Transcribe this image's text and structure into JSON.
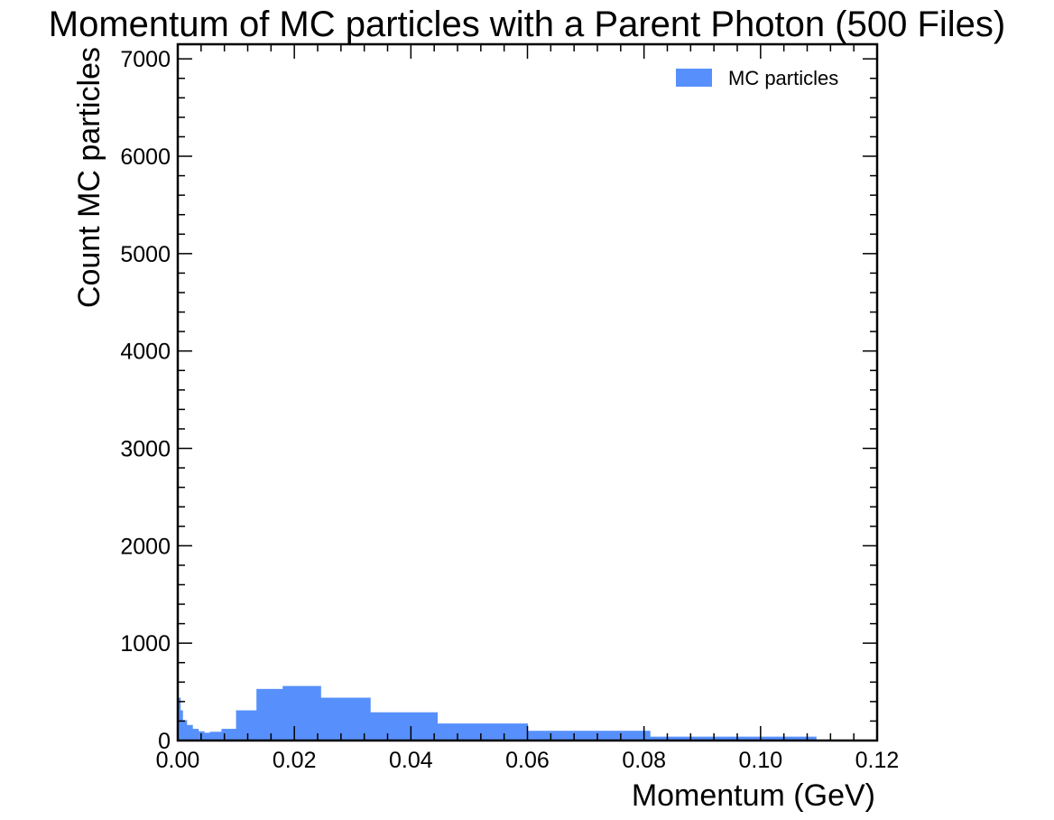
{
  "chart_data": {
    "type": "bar",
    "title": "Momentum of MC particles with a Parent Photon (500 Files)",
    "xlabel": "Momentum (GeV)",
    "ylabel": "Count MC particles",
    "xlim": [
      0,
      0.12
    ],
    "ylim": [
      0,
      7150
    ],
    "xticks": [
      0,
      0.02,
      0.04,
      0.06,
      0.08,
      0.1,
      0.12
    ],
    "xtick_labels": [
      "0.00",
      "0.02",
      "0.04",
      "0.06",
      "0.08",
      "0.10",
      "0.12"
    ],
    "yticks": [
      0,
      1000,
      2000,
      3000,
      4000,
      5000,
      6000,
      7000
    ],
    "ytick_labels": [
      "0",
      "1000",
      "2000",
      "3000",
      "4000",
      "5000",
      "6000",
      "7000"
    ],
    "legend": {
      "label": "MC particles",
      "position": "top-right"
    },
    "color": "#5790fc",
    "bins": [
      {
        "x0": 0.0,
        "x1": 0.0004,
        "value": 440
      },
      {
        "x0": 0.0004,
        "x1": 0.0008,
        "value": 310
      },
      {
        "x0": 0.0008,
        "x1": 0.0015,
        "value": 210
      },
      {
        "x0": 0.0015,
        "x1": 0.0025,
        "value": 160
      },
      {
        "x0": 0.0025,
        "x1": 0.0035,
        "value": 120
      },
      {
        "x0": 0.0035,
        "x1": 0.0045,
        "value": 95
      },
      {
        "x0": 0.0045,
        "x1": 0.0055,
        "value": 80
      },
      {
        "x0": 0.0055,
        "x1": 0.0075,
        "value": 90
      },
      {
        "x0": 0.0075,
        "x1": 0.01,
        "value": 120
      },
      {
        "x0": 0.01,
        "x1": 0.0135,
        "value": 310
      },
      {
        "x0": 0.0135,
        "x1": 0.018,
        "value": 530
      },
      {
        "x0": 0.018,
        "x1": 0.0245,
        "value": 560
      },
      {
        "x0": 0.0245,
        "x1": 0.033,
        "value": 440
      },
      {
        "x0": 0.033,
        "x1": 0.0445,
        "value": 290
      },
      {
        "x0": 0.0445,
        "x1": 0.06,
        "value": 175
      },
      {
        "x0": 0.06,
        "x1": 0.081,
        "value": 100
      },
      {
        "x0": 0.081,
        "x1": 0.1095,
        "value": 40
      }
    ]
  }
}
